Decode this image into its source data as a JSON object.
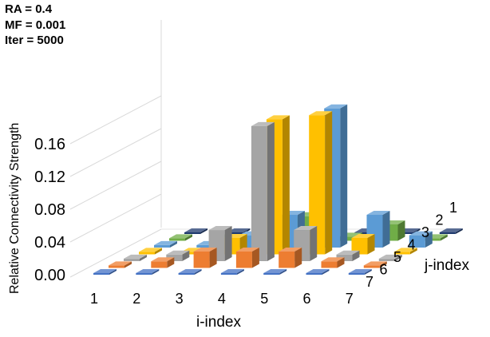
{
  "params": {
    "ra": "RA = 0.4",
    "mf": "MF = 0.001",
    "iter": "Iter = 5000"
  },
  "chart_data": {
    "type": "bar",
    "style": "3d-column",
    "title": "",
    "ylabel": "Relative Connectivity Strength",
    "xlabel": "i-index",
    "zlabel": "j-index",
    "ylim": [
      0,
      0.16
    ],
    "yticks": [
      "0.00",
      "0.04",
      "0.08",
      "0.12",
      "0.16"
    ],
    "i_categories": [
      "1",
      "2",
      "3",
      "4",
      "5",
      "6",
      "7"
    ],
    "j_categories": [
      "1",
      "2",
      "3",
      "4",
      "5",
      "6",
      "7"
    ],
    "series_colors": [
      "#1f3a6e",
      "#70ad47",
      "#5b9bd5",
      "#ffc000",
      "#a5a5a5",
      "#ed7d31",
      "#4472c4"
    ],
    "series": [
      {
        "j": "1",
        "values": [
          0.002,
          0.002,
          0.002,
          0.002,
          0.002,
          0.002,
          0.002
        ]
      },
      {
        "j": "2",
        "values": [
          0.003,
          0.003,
          0.005,
          0.03,
          0.005,
          0.02,
          0.003
        ]
      },
      {
        "j": "3",
        "values": [
          0.003,
          0.003,
          0.015,
          0.04,
          0.17,
          0.04,
          0.015
        ]
      },
      {
        "j": "4",
        "values": [
          0.003,
          0.003,
          0.02,
          0.165,
          0.17,
          0.02,
          0.003
        ]
      },
      {
        "j": "5",
        "values": [
          0.003,
          0.008,
          0.038,
          0.165,
          0.038,
          0.008,
          0.003
        ]
      },
      {
        "j": "6",
        "values": [
          0.003,
          0.008,
          0.02,
          0.02,
          0.02,
          0.008,
          0.003
        ]
      },
      {
        "j": "7",
        "values": [
          0.002,
          0.002,
          0.002,
          0.002,
          0.002,
          0.002,
          0.002
        ]
      }
    ]
  }
}
